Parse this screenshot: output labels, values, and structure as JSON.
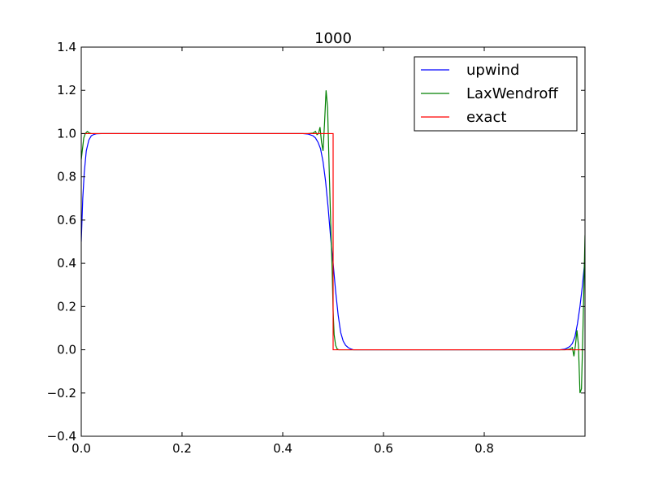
{
  "chart_data": {
    "type": "line",
    "title": "1000",
    "xlabel": "",
    "ylabel": "",
    "xlim": [
      0.0,
      1.0
    ],
    "ylim": [
      -0.4,
      1.4
    ],
    "x_ticks": [
      0.0,
      0.2,
      0.4,
      0.6,
      0.8
    ],
    "x_tick_labels": [
      "0.0",
      "0.2",
      "0.4",
      "0.6",
      "0.8"
    ],
    "y_ticks": [
      -0.4,
      -0.2,
      0.0,
      0.2,
      0.4,
      0.6,
      0.8,
      1.0,
      1.2,
      1.4
    ],
    "y_tick_labels": [
      "−0.4",
      "−0.2",
      "0.0",
      "0.2",
      "0.4",
      "0.6",
      "0.8",
      "1.0",
      "1.2",
      "1.4"
    ],
    "grid": false,
    "legend_position": "top-right",
    "series": [
      {
        "name": "upwind",
        "color": "#0000ff",
        "x": [
          0.0,
          0.003,
          0.006,
          0.01,
          0.015,
          0.02,
          0.025,
          0.03,
          0.04,
          0.1,
          0.44,
          0.45,
          0.46,
          0.465,
          0.47,
          0.475,
          0.48,
          0.485,
          0.49,
          0.495,
          0.5,
          0.505,
          0.51,
          0.515,
          0.52,
          0.525,
          0.53,
          0.535,
          0.54,
          0.6,
          0.95,
          0.96,
          0.97,
          0.975,
          0.98,
          0.985,
          0.99,
          0.995,
          1.0
        ],
        "y": [
          0.5,
          0.7,
          0.82,
          0.92,
          0.97,
          0.99,
          0.996,
          0.999,
          1.0,
          1.0,
          1.0,
          0.998,
          0.99,
          0.98,
          0.96,
          0.93,
          0.87,
          0.78,
          0.66,
          0.52,
          0.4,
          0.27,
          0.16,
          0.08,
          0.04,
          0.02,
          0.01,
          0.004,
          0.0,
          0.0,
          0.0,
          0.003,
          0.015,
          0.03,
          0.06,
          0.12,
          0.2,
          0.3,
          0.42
        ]
      },
      {
        "name": "LaxWendroff",
        "color": "#008000",
        "x": [
          0.0,
          0.002,
          0.005,
          0.008,
          0.012,
          0.016,
          0.02,
          0.025,
          0.03,
          0.1,
          0.45,
          0.46,
          0.465,
          0.468,
          0.471,
          0.474,
          0.477,
          0.48,
          0.483,
          0.486,
          0.489,
          0.492,
          0.495,
          0.498,
          0.5,
          0.502,
          0.505,
          0.508,
          0.511,
          0.515,
          0.52,
          0.6,
          0.96,
          0.97,
          0.975,
          0.978,
          0.981,
          0.984,
          0.987,
          0.99,
          0.993,
          0.996,
          1.0
        ],
        "y": [
          0.88,
          0.92,
          0.98,
          1.0,
          1.01,
          1.003,
          1.0,
          1.0,
          1.0,
          1.0,
          1.0,
          1.002,
          1.01,
          0.995,
          1.0,
          1.03,
          0.96,
          0.92,
          1.05,
          1.2,
          1.12,
          0.85,
          0.6,
          0.38,
          0.18,
          0.07,
          0.02,
          0.004,
          0.0,
          0.0,
          0.0,
          0.0,
          0.0,
          0.003,
          0.01,
          -0.03,
          0.02,
          0.09,
          0.02,
          -0.2,
          -0.18,
          0.1,
          0.53
        ]
      },
      {
        "name": "exact",
        "color": "#ff0000",
        "x": [
          0.0,
          0.5,
          0.5,
          1.0
        ],
        "y": [
          1.0,
          1.0,
          0.0,
          0.0
        ]
      }
    ]
  }
}
